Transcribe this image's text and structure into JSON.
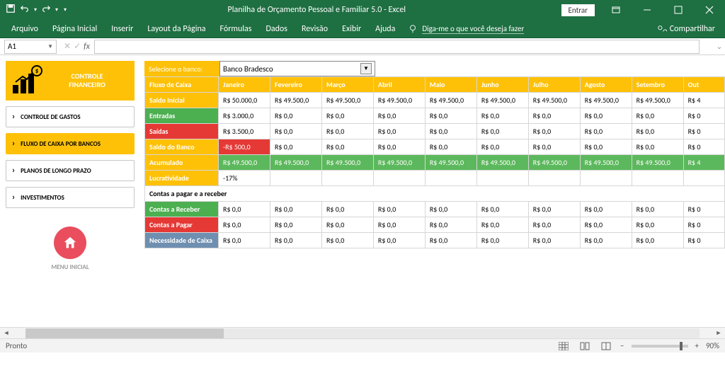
{
  "titlebar": {
    "title": "Planilha de Orçamento Pessoal e Familiar 5.0  -  Excel",
    "entrar": "Entrar"
  },
  "ribbon": {
    "tabs": [
      "Arquivo",
      "Página Inicial",
      "Inserir",
      "Layout da Página",
      "Fórmulas",
      "Dados",
      "Revisão",
      "Exibir",
      "Ajuda"
    ],
    "tellme": "Diga-me o que você deseja fazer",
    "share": "Compartilhar"
  },
  "fx": {
    "cellref": "A1"
  },
  "side": {
    "title1": "CONTROLE",
    "title2": "FINANCEIRO",
    "coin": "$",
    "btn1": "CONTROLE DE GASTOS",
    "btn2": "FLUXO DE CAIXA POR BANCOS",
    "btn3": "PLANOS DE LONGO PRAZO",
    "btn4": "INVESTIMENTOS",
    "menu": "MENU INICIAL"
  },
  "dropdown": {
    "label": "Selecione o banco:",
    "value": "Banco Bradesco"
  },
  "months": [
    "Janeiro",
    "Fevereiro",
    "Março",
    "Abril",
    "Maio",
    "Junho",
    "Julho",
    "Agosto",
    "Setembro",
    "Out"
  ],
  "rowlabel_header": "Fluxo de Caixa",
  "rows": {
    "saldoInicial": {
      "label": "Saldo Inicial",
      "vals": [
        "R$ 50.000,0",
        "R$ 49.500,0",
        "R$ 49.500,0",
        "R$ 49.500,0",
        "R$ 49.500,0",
        "R$ 49.500,0",
        "R$ 49.500,0",
        "R$ 49.500,0",
        "R$ 49.500,0",
        "R$ 4"
      ]
    },
    "entradas": {
      "label": "Entradas",
      "vals": [
        "R$ 3.000,0",
        "R$ 0,0",
        "R$ 0,0",
        "R$ 0,0",
        "R$ 0,0",
        "R$ 0,0",
        "R$ 0,0",
        "R$ 0,0",
        "R$ 0,0",
        "R$ 0"
      ]
    },
    "saidas": {
      "label": "Saídas",
      "vals": [
        "R$ 3.500,0",
        "R$ 0,0",
        "R$ 0,0",
        "R$ 0,0",
        "R$ 0,0",
        "R$ 0,0",
        "R$ 0,0",
        "R$ 0,0",
        "R$ 0,0",
        "R$ 0"
      ]
    },
    "saldoBanco": {
      "label": "Saldo do Banco",
      "vals": [
        "-R$ 500,0",
        "R$ 0,0",
        "R$ 0,0",
        "R$ 0,0",
        "R$ 0,0",
        "R$ 0,0",
        "R$ 0,0",
        "R$ 0,0",
        "R$ 0,0",
        "R$ 0"
      ]
    },
    "acumulado": {
      "label": "Acumulado",
      "vals": [
        "R$ 49.500,0",
        "R$ 49.500,0",
        "R$ 49.500,0",
        "R$ 49.500,0",
        "R$ 49.500,0",
        "R$ 49.500,0",
        "R$ 49.500,0",
        "R$ 49.500,0",
        "R$ 49.500,0",
        "R$ 4"
      ]
    },
    "lucratividade": {
      "label": "Lucratividade",
      "vals": [
        "-17%",
        "",
        "",
        "",
        "",
        "",
        "",
        "",
        "",
        ""
      ]
    },
    "section": "Contas a pagar e a receber",
    "receber": {
      "label": "Contas a Receber",
      "vals": [
        "R$ 0,0",
        "R$ 0,0",
        "R$ 0,0",
        "R$ 0,0",
        "R$ 0,0",
        "R$ 0,0",
        "R$ 0,0",
        "R$ 0,0",
        "R$ 0,0",
        "R$ 0"
      ]
    },
    "pagar": {
      "label": "Contas a Pagar",
      "vals": [
        "R$ 0,0",
        "R$ 0,0",
        "R$ 0,0",
        "R$ 0,0",
        "R$ 0,0",
        "R$ 0,0",
        "R$ 0,0",
        "R$ 0,0",
        "R$ 0,0",
        "R$ 0"
      ]
    },
    "necessidade": {
      "label": "Necessidade de Caixa",
      "vals": [
        "R$ 0,0",
        "R$ 0,0",
        "R$ 0,0",
        "R$ 0,0",
        "R$ 0,0",
        "R$ 0,0",
        "R$ 0,0",
        "R$ 0,0",
        "R$ 0,0",
        "R$ 0"
      ]
    }
  },
  "status": {
    "ready": "Pronto",
    "zoom": "90%"
  },
  "colors": {
    "excel_green": "#1e6f42",
    "accent_yellow": "#fec108",
    "row_green": "#4caf50",
    "row_red": "#e53935",
    "row_blue": "#6f8fb0",
    "cell_green": "#5cb85c",
    "home_red": "#ea4d5d"
  }
}
